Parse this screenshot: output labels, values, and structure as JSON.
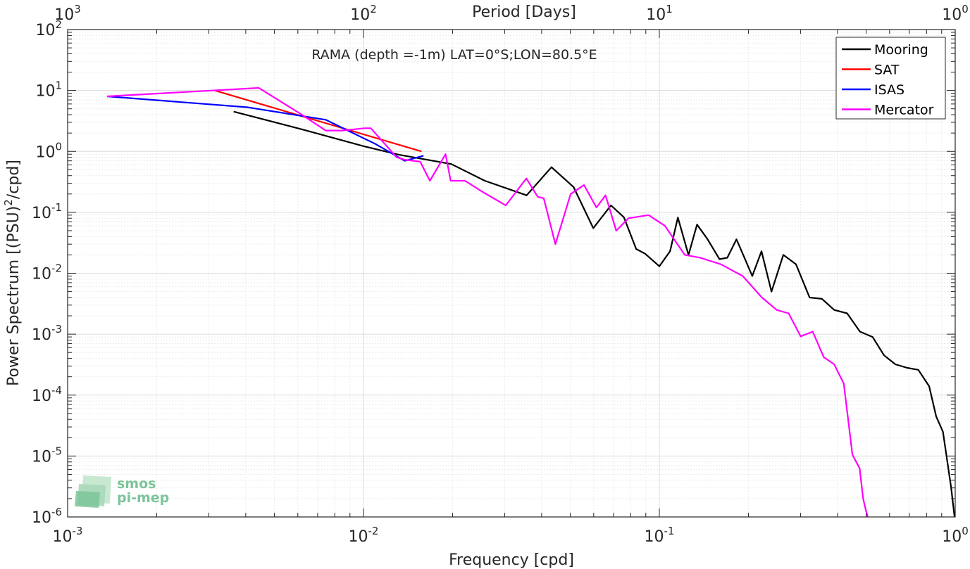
{
  "chart_data": {
    "type": "line",
    "title": "RAMA (depth =-1m) LAT=0°S;LON=80.5°E",
    "xlabel": "Frequency [cpd]",
    "ylabel": "Power Spectrum [(PSU)²/cpd]",
    "top_xlabel": "Period [Days]",
    "x_scale": "log",
    "y_scale": "log",
    "xlim": [
      0.001,
      1
    ],
    "ylim": [
      1e-06,
      100
    ],
    "x_ticks": [
      {
        "value": 0.001,
        "base": "10",
        "exp": "-3"
      },
      {
        "value": 0.01,
        "base": "10",
        "exp": "-2"
      },
      {
        "value": 0.1,
        "base": "10",
        "exp": "-1"
      },
      {
        "value": 1,
        "base": "10",
        "exp": "0"
      }
    ],
    "top_ticks": [
      {
        "value": 0.001,
        "base": "10",
        "exp": "3"
      },
      {
        "value": 0.01,
        "base": "10",
        "exp": "2"
      },
      {
        "value": 0.1,
        "base": "10",
        "exp": "1"
      },
      {
        "value": 1,
        "base": "10",
        "exp": "0"
      }
    ],
    "y_ticks": [
      {
        "value": 1e-06,
        "base": "10",
        "exp": "-6"
      },
      {
        "value": 1e-05,
        "base": "10",
        "exp": "-5"
      },
      {
        "value": 0.0001,
        "base": "10",
        "exp": "-4"
      },
      {
        "value": 0.001,
        "base": "10",
        "exp": "-3"
      },
      {
        "value": 0.01,
        "base": "10",
        "exp": "-2"
      },
      {
        "value": 0.1,
        "base": "10",
        "exp": "-1"
      },
      {
        "value": 1,
        "base": "10",
        "exp": "0"
      },
      {
        "value": 10,
        "base": "10",
        "exp": "1"
      },
      {
        "value": 100,
        "base": "10",
        "exp": "2"
      }
    ],
    "grid": true,
    "legend_position": "top-right",
    "series": [
      {
        "name": "Mooring",
        "color": "#000000",
        "x": [
          0.00364,
          0.0062,
          0.01,
          0.0132,
          0.0198,
          0.0257,
          0.0356,
          0.0432,
          0.0513,
          0.0598,
          0.0686,
          0.0759,
          0.0835,
          0.0894,
          0.1,
          0.1087,
          0.1155,
          0.1255,
          0.1341,
          0.1451,
          0.1597,
          0.1697,
          0.1823,
          0.1939,
          0.2061,
          0.2214,
          0.2393,
          0.2624,
          0.2896,
          0.322,
          0.3545,
          0.3902,
          0.4312,
          0.4765,
          0.5258,
          0.5749,
          0.6278,
          0.6881,
          0.7504,
          0.8165,
          0.8619,
          0.9092,
          0.9394,
          0.9681,
          0.9951
        ],
        "y": [
          4.5,
          2.3,
          1.22,
          0.88,
          0.62,
          0.33,
          0.19,
          0.55,
          0.26,
          0.055,
          0.13,
          0.083,
          0.025,
          0.021,
          0.013,
          0.023,
          0.082,
          0.02,
          0.063,
          0.037,
          0.017,
          0.018,
          0.036,
          0.018,
          0.009,
          0.023,
          0.005,
          0.02,
          0.014,
          0.004,
          0.0038,
          0.0025,
          0.0022,
          0.0011,
          0.0009,
          0.00045,
          0.00032,
          0.00028,
          0.00026,
          0.00014,
          4.5e-05,
          2.5e-05,
          8.4e-06,
          3.1e-06,
          1e-06
        ]
      },
      {
        "name": "SAT",
        "color": "#ff0000",
        "x": [
          0.00314,
          0.01571
        ],
        "y": [
          10.0,
          1.0
        ]
      },
      {
        "name": "ISAS",
        "color": "#0000ff",
        "x": [
          0.00136,
          0.00405,
          0.00745,
          0.01099,
          0.01378,
          0.01595
        ],
        "y": [
          8.0,
          5.3,
          3.3,
          1.32,
          0.7,
          0.85
        ]
      },
      {
        "name": "Mercator",
        "color": "#ff00ff",
        "x": [
          0.00136,
          0.00443,
          0.00619,
          0.00745,
          0.00846,
          0.01009,
          0.01059,
          0.01294,
          0.01378,
          0.01554,
          0.01677,
          0.01894,
          0.01971,
          0.02204,
          0.02512,
          0.03027,
          0.03553,
          0.03881,
          0.04066,
          0.04451,
          0.05015,
          0.05565,
          0.06129,
          0.06578,
          0.07149,
          0.07867,
          0.09195,
          0.10445,
          0.12186,
          0.13745,
          0.16156,
          0.19143,
          0.22211,
          0.24933,
          0.27352,
          0.30041,
          0.32979,
          0.35952,
          0.38995,
          0.42002,
          0.44927,
          0.47534,
          0.48844,
          0.49885,
          0.50634
        ],
        "y": [
          8.0,
          11.0,
          4.0,
          2.2,
          2.2,
          2.4,
          2.4,
          0.8,
          0.73,
          0.68,
          0.33,
          0.9,
          0.33,
          0.33,
          0.22,
          0.13,
          0.36,
          0.18,
          0.17,
          0.03,
          0.2,
          0.28,
          0.12,
          0.19,
          0.05,
          0.08,
          0.09,
          0.06,
          0.02,
          0.018,
          0.014,
          0.009,
          0.004,
          0.0025,
          0.0022,
          0.00092,
          0.0011,
          0.00042,
          0.00032,
          0.000155,
          1.05e-05,
          6.3e-06,
          2e-06,
          1.3e-06,
          1e-06
        ]
      }
    ]
  },
  "logo": {
    "line1": "smos",
    "line2": "pi-mep",
    "colors": [
      "#a8d8b9",
      "#7cc49a",
      "#5aae7e",
      "#c8e8d2"
    ]
  }
}
